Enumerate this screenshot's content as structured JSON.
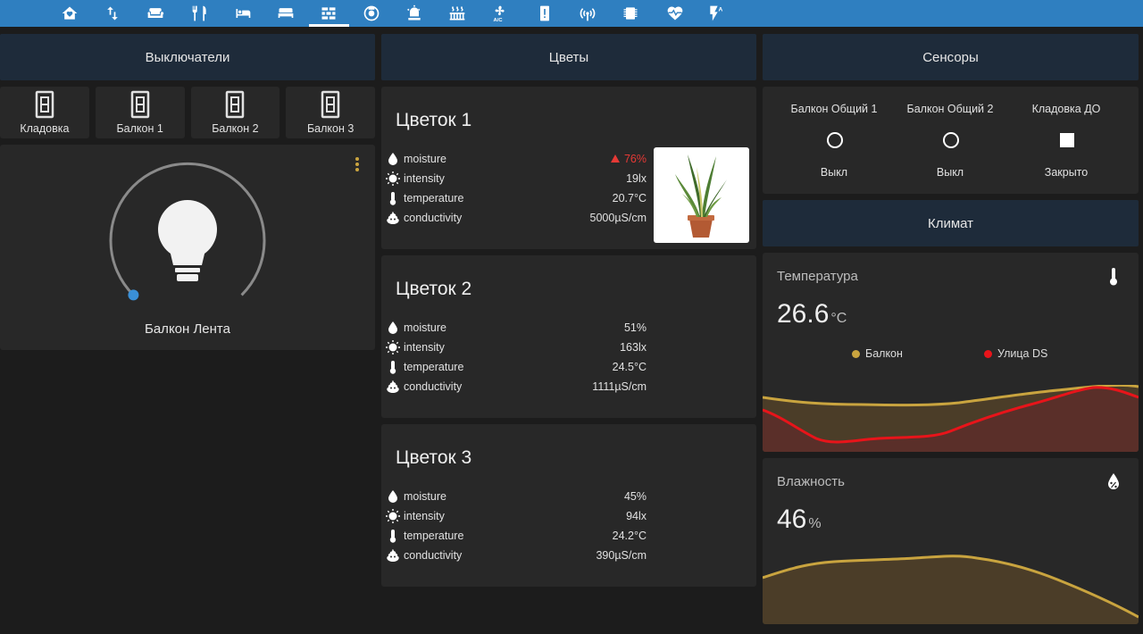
{
  "nav": {
    "icons": [
      "home-heart-icon",
      "swap-vertical-icon",
      "sofa-icon",
      "silverware-icon",
      "bed-single-icon",
      "bed-double-icon",
      "wall-icon",
      "robot-vacuum-icon",
      "alarm-light-icon",
      "radiator-icon",
      "air-conditioner-icon",
      "alert-icon",
      "access-point-icon",
      "chip-icon",
      "heart-pulse-icon",
      "flash-auto-icon"
    ],
    "active_index": 6
  },
  "switches": {
    "header": "Выключатели",
    "items": [
      {
        "label": "Кладовка"
      },
      {
        "label": "Балкон 1"
      },
      {
        "label": "Балкон 2"
      },
      {
        "label": "Балкон 3"
      }
    ],
    "light": {
      "label": "Балкон Лента",
      "brightness_percent": 0
    }
  },
  "flowers": {
    "header": "Цветы",
    "items": [
      {
        "name": "Цветок 1",
        "rows": [
          {
            "label": "moisture",
            "value": "76%",
            "warning": true
          },
          {
            "label": "intensity",
            "value": "19lx"
          },
          {
            "label": "temperature",
            "value": "20.7°C"
          },
          {
            "label": "conductivity",
            "value": "5000µS/cm"
          }
        ]
      },
      {
        "name": "Цветок 2",
        "rows": [
          {
            "label": "moisture",
            "value": "51%"
          },
          {
            "label": "intensity",
            "value": "163lx"
          },
          {
            "label": "temperature",
            "value": "24.5°C"
          },
          {
            "label": "conductivity",
            "value": "1111µS/cm"
          }
        ]
      },
      {
        "name": "Цветок 3",
        "rows": [
          {
            "label": "moisture",
            "value": "45%"
          },
          {
            "label": "intensity",
            "value": "94lx"
          },
          {
            "label": "temperature",
            "value": "24.2°C"
          },
          {
            "label": "conductivity",
            "value": "390µS/cm"
          }
        ]
      }
    ]
  },
  "sensors": {
    "header": "Сенсоры",
    "items": [
      {
        "name": "Балкон Общий 1",
        "state": "Выкл",
        "icon": "circle-outline-icon"
      },
      {
        "name": "Балкон Общий 2",
        "state": "Выкл",
        "icon": "circle-outline-icon"
      },
      {
        "name": "Кладовка ДО",
        "state": "Закрыто",
        "icon": "square-icon"
      }
    ]
  },
  "climate": {
    "header": "Климат",
    "temperature": {
      "title": "Температура",
      "value": "26.6",
      "unit": "°C",
      "legend": [
        {
          "name": "Балкон",
          "color": "#c9a43f"
        },
        {
          "name": "Улица DS",
          "color": "#e8141a"
        }
      ]
    },
    "humidity": {
      "title": "Влажность",
      "value": "46",
      "unit": "%"
    }
  },
  "colors": {
    "accent": "#2f7fc0",
    "header_bg": "#1e2b3a",
    "card_bg": "#282828",
    "warning": "#e53935",
    "series_gold": "#c9a43f",
    "series_red": "#e8141a"
  }
}
